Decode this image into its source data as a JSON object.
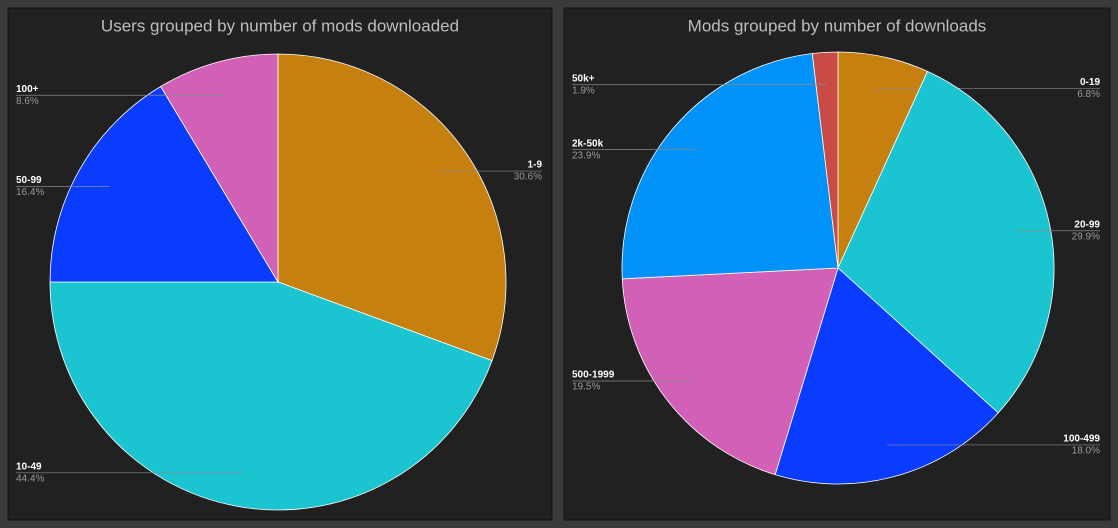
{
  "chart_data": [
    {
      "type": "pie",
      "title": "Users grouped by number of mods downloaded",
      "categories": [
        "1-9",
        "10-49",
        "50-99",
        "100+"
      ],
      "values": [
        30.6,
        44.4,
        16.4,
        8.6
      ],
      "value_labels": [
        "30.6%",
        "44.4%",
        "16.4%",
        "8.6%"
      ],
      "colors": [
        "#c5800f",
        "#1bc4d1",
        "#0a3cff",
        "#d160b6"
      ]
    },
    {
      "type": "pie",
      "title": "Mods grouped by number of downloads",
      "categories": [
        "0-19",
        "20-99",
        "100-499",
        "500-1999",
        "2k-50k",
        "50k+"
      ],
      "values": [
        6.8,
        29.9,
        18.0,
        19.5,
        23.9,
        1.9
      ],
      "value_labels": [
        "6.8%",
        "29.9%",
        "18.0%",
        "19.5%",
        "23.9%",
        "1.9%"
      ],
      "colors": [
        "#c5800f",
        "#1bc4d1",
        "#0a3cff",
        "#d160b6",
        "#0092f8",
        "#c84b45"
      ]
    }
  ]
}
